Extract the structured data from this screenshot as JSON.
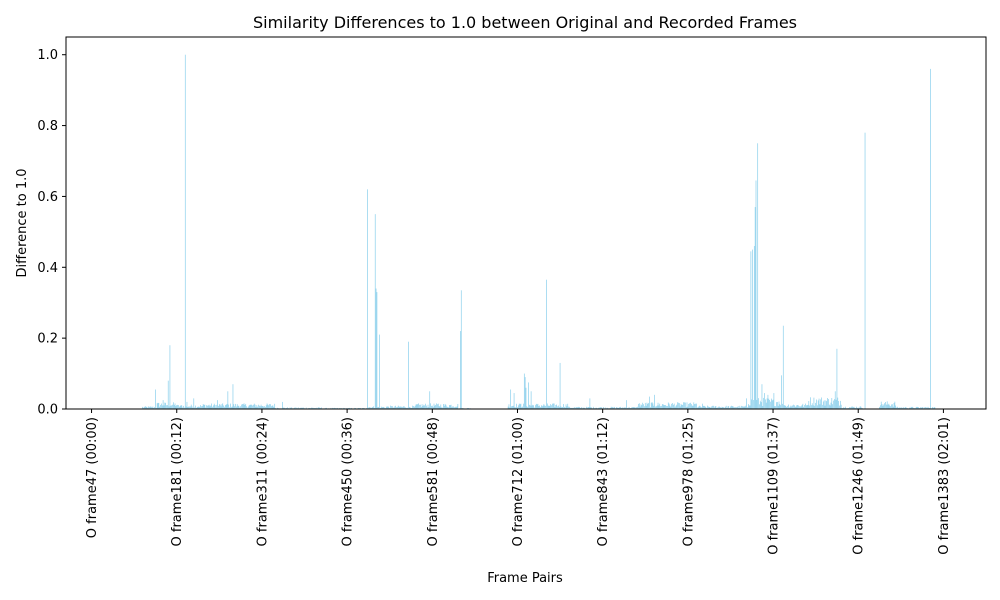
{
  "chart_data": {
    "type": "bar",
    "title": "Similarity Differences to 1.0 between Original and Recorded Frames",
    "xlabel": "Frame Pairs",
    "ylabel": "Difference to 1.0",
    "ylim": [
      0,
      1.05
    ],
    "yticks": [
      "0.0",
      "0.2",
      "0.4",
      "0.6",
      "0.8",
      "1.0"
    ],
    "yticks_values": [
      0.0,
      0.2,
      0.4,
      0.6,
      0.8,
      1.0
    ],
    "xticks": [
      {
        "label": "O frame47 (00:00)",
        "index": 0
      },
      {
        "label": "O frame181 (00:12)",
        "index": 100
      },
      {
        "label": "O frame311 (00:24)",
        "index": 200
      },
      {
        "label": "O frame450 (00:36)",
        "index": 300
      },
      {
        "label": "O frame581 (00:48)",
        "index": 400
      },
      {
        "label": "O frame712 (01:00)",
        "index": 500
      },
      {
        "label": "O frame843 (01:12)",
        "index": 600
      },
      {
        "label": "O frame978 (01:25)",
        "index": 700
      },
      {
        "label": "O frame1109 (01:37)",
        "index": 800
      },
      {
        "label": "O frame1246 (01:49)",
        "index": 900
      },
      {
        "label": "O frame1383 (02:01)",
        "index": 1000
      }
    ],
    "n_bars": 1010,
    "x_range": [
      -30,
      1050
    ],
    "grid": false,
    "bar_color": "#87CEEB",
    "spikes": [
      {
        "index": 75,
        "value": 0.055
      },
      {
        "index": 84,
        "value": 0.025
      },
      {
        "index": 90,
        "value": 0.08
      },
      {
        "index": 92,
        "value": 0.18
      },
      {
        "index": 110,
        "value": 1.0
      },
      {
        "index": 112,
        "value": 0.02
      },
      {
        "index": 120,
        "value": 0.03
      },
      {
        "index": 148,
        "value": 0.025
      },
      {
        "index": 160,
        "value": 0.05
      },
      {
        "index": 166,
        "value": 0.07
      },
      {
        "index": 224,
        "value": 0.02
      },
      {
        "index": 324,
        "value": 0.62
      },
      {
        "index": 333,
        "value": 0.55
      },
      {
        "index": 334,
        "value": 0.34
      },
      {
        "index": 335,
        "value": 0.33
      },
      {
        "index": 338,
        "value": 0.21
      },
      {
        "index": 372,
        "value": 0.19
      },
      {
        "index": 397,
        "value": 0.05
      },
      {
        "index": 407,
        "value": 0.015
      },
      {
        "index": 433,
        "value": 0.22
      },
      {
        "index": 434,
        "value": 0.335
      },
      {
        "index": 492,
        "value": 0.055
      },
      {
        "index": 496,
        "value": 0.045
      },
      {
        "index": 504,
        "value": 0.015
      },
      {
        "index": 508,
        "value": 0.1
      },
      {
        "index": 509,
        "value": 0.09
      },
      {
        "index": 510,
        "value": 0.06
      },
      {
        "index": 513,
        "value": 0.075
      },
      {
        "index": 516,
        "value": 0.05
      },
      {
        "index": 534,
        "value": 0.365
      },
      {
        "index": 550,
        "value": 0.13
      },
      {
        "index": 585,
        "value": 0.03
      },
      {
        "index": 628,
        "value": 0.025
      },
      {
        "index": 655,
        "value": 0.035
      },
      {
        "index": 661,
        "value": 0.04
      },
      {
        "index": 717,
        "value": 0.015
      },
      {
        "index": 769,
        "value": 0.03
      },
      {
        "index": 774,
        "value": 0.445
      },
      {
        "index": 776,
        "value": 0.45
      },
      {
        "index": 778,
        "value": 0.46
      },
      {
        "index": 779,
        "value": 0.57
      },
      {
        "index": 780,
        "value": 0.645
      },
      {
        "index": 782,
        "value": 0.75
      },
      {
        "index": 787,
        "value": 0.07
      },
      {
        "index": 790,
        "value": 0.045
      },
      {
        "index": 794,
        "value": 0.04
      },
      {
        "index": 801,
        "value": 0.045
      },
      {
        "index": 810,
        "value": 0.095
      },
      {
        "index": 812,
        "value": 0.235
      },
      {
        "index": 873,
        "value": 0.05
      },
      {
        "index": 875,
        "value": 0.17
      },
      {
        "index": 908,
        "value": 0.78
      },
      {
        "index": 985,
        "value": 0.96
      }
    ],
    "segments": [
      {
        "from": 0,
        "to": 59,
        "base": 0.0
      },
      {
        "from": 60,
        "to": 76,
        "base": 0.005
      },
      {
        "from": 77,
        "to": 100,
        "base": 0.012
      },
      {
        "from": 101,
        "to": 130,
        "base": 0.008
      },
      {
        "from": 131,
        "to": 215,
        "base": 0.01
      },
      {
        "from": 216,
        "to": 270,
        "base": 0.003
      },
      {
        "from": 271,
        "to": 322,
        "base": 0.002
      },
      {
        "from": 323,
        "to": 345,
        "base": 0.005
      },
      {
        "from": 346,
        "to": 380,
        "base": 0.006
      },
      {
        "from": 381,
        "to": 430,
        "base": 0.01
      },
      {
        "from": 431,
        "to": 445,
        "base": 0.002
      },
      {
        "from": 446,
        "to": 488,
        "base": 0.0
      },
      {
        "from": 489,
        "to": 560,
        "base": 0.01
      },
      {
        "from": 561,
        "to": 640,
        "base": 0.004
      },
      {
        "from": 641,
        "to": 710,
        "base": 0.012
      },
      {
        "from": 711,
        "to": 770,
        "base": 0.006
      },
      {
        "from": 771,
        "to": 813,
        "base": 0.02
      },
      {
        "from": 814,
        "to": 840,
        "base": 0.01
      },
      {
        "from": 841,
        "to": 880,
        "base": 0.022
      },
      {
        "from": 881,
        "to": 905,
        "base": 0.005
      },
      {
        "from": 906,
        "to": 924,
        "base": 0.0
      },
      {
        "from": 925,
        "to": 944,
        "base": 0.014
      },
      {
        "from": 945,
        "to": 990,
        "base": 0.004
      },
      {
        "from": 991,
        "to": 1009,
        "base": 0.0
      }
    ]
  }
}
